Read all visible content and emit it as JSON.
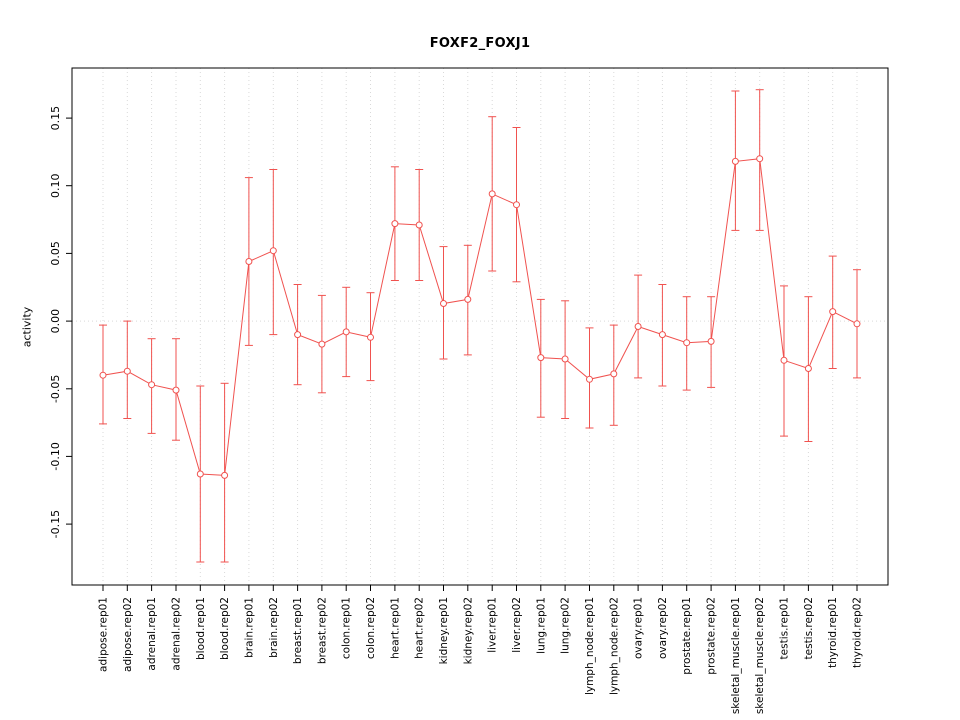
{
  "title": "FOXF2_FOXJ1",
  "chart_data": {
    "type": "line",
    "title": "FOXF2_FOXJ1",
    "xlabel": "",
    "ylabel": "activity",
    "ylim": [
      -0.195,
      0.187
    ],
    "yticks": [
      -0.15,
      -0.1,
      -0.05,
      0.0,
      0.05,
      0.1,
      0.15
    ],
    "ytick_labels": [
      "-0.15",
      "-0.10",
      "-0.05",
      "0.00",
      "0.05",
      "0.10",
      "0.15"
    ],
    "grid": "vertical-dotted-plus-zero-line",
    "legend": "none",
    "series_color": "#f0524f",
    "grid_color": "#d9d9d9",
    "box_color": "#000000",
    "point_style": "open-circle",
    "error_bars": true,
    "categories": [
      "adipose.rep01",
      "adipose.rep02",
      "adrenal.rep01",
      "adrenal.rep02",
      "blood.rep01",
      "blood.rep02",
      "brain.rep01",
      "brain.rep02",
      "breast.rep01",
      "breast.rep02",
      "colon.rep01",
      "colon.rep02",
      "heart.rep01",
      "heart.rep02",
      "kidney.rep01",
      "kidney.rep02",
      "liver.rep01",
      "liver.rep02",
      "lung.rep01",
      "lung.rep02",
      "lymph_node.rep01",
      "lymph_node.rep02",
      "ovary.rep01",
      "ovary.rep02",
      "prostate.rep01",
      "prostate.rep02",
      "skeletal_muscle.rep01",
      "skeletal_muscle.rep02",
      "testis.rep01",
      "testis.rep02",
      "thyroid.rep01",
      "thyroid.rep02"
    ],
    "values": [
      -0.04,
      -0.037,
      -0.047,
      -0.051,
      -0.113,
      -0.114,
      0.044,
      0.052,
      -0.01,
      -0.017,
      -0.008,
      -0.012,
      0.072,
      0.071,
      0.013,
      0.016,
      0.094,
      0.086,
      -0.027,
      -0.028,
      -0.043,
      -0.039,
      -0.004,
      -0.01,
      -0.016,
      -0.015,
      0.118,
      0.12,
      -0.029,
      -0.035,
      0.007,
      -0.002
    ],
    "ci_low": [
      -0.076,
      -0.072,
      -0.083,
      -0.088,
      -0.178,
      -0.178,
      -0.018,
      -0.01,
      -0.047,
      -0.053,
      -0.041,
      -0.044,
      0.03,
      0.03,
      -0.028,
      -0.025,
      0.037,
      0.029,
      -0.071,
      -0.072,
      -0.079,
      -0.077,
      -0.042,
      -0.048,
      -0.051,
      -0.049,
      0.067,
      0.067,
      -0.085,
      -0.089,
      -0.035,
      -0.042
    ],
    "ci_high": [
      -0.003,
      0.0,
      -0.013,
      -0.013,
      -0.048,
      -0.046,
      0.106,
      0.112,
      0.027,
      0.019,
      0.025,
      0.021,
      0.114,
      0.112,
      0.055,
      0.056,
      0.151,
      0.143,
      0.016,
      0.015,
      -0.005,
      -0.003,
      0.034,
      0.027,
      0.018,
      0.018,
      0.17,
      0.171,
      0.026,
      0.018,
      0.048,
      0.038
    ]
  }
}
